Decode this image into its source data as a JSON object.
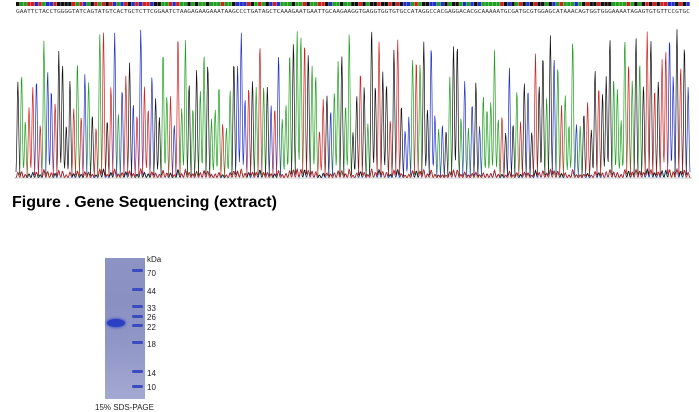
{
  "sequence": {
    "bases": "GAATTCTACCTGGGGTATCAGTATGTCACTGCTCTTCGGAATCTAAGAGAAGAAATAAGCCCTGATAGCTCAAAGAATGAATTGCAAGAAGGTGAGGTGGTGTGCCATAGGCCACGAGGACACGCAAAAATGCGATGCGTGGAGCATAAACAGTGGTGGGAAAATAGAGTGTGTTCCGTGC",
    "base_colors": {
      "A": "#20a020",
      "C": "#2030c8",
      "G": "#111111",
      "T": "#d02020"
    }
  },
  "figure_caption": "Figure . Gene Sequencing (extract)",
  "gel": {
    "unit_label": "kDa",
    "markers": [
      {
        "label": "70",
        "band": true
      },
      {
        "label": "44",
        "band": true
      },
      {
        "label": "33",
        "band": true
      },
      {
        "label": "26",
        "band": true
      },
      {
        "label": "22",
        "band": true
      },
      {
        "label": "18",
        "band": true
      },
      {
        "label": "14",
        "band": true
      },
      {
        "label": "10",
        "band": true
      }
    ],
    "caption": "15% SDS-PAGE",
    "lane_color": "#8d93c4",
    "band_color": "#2a3fc4"
  }
}
